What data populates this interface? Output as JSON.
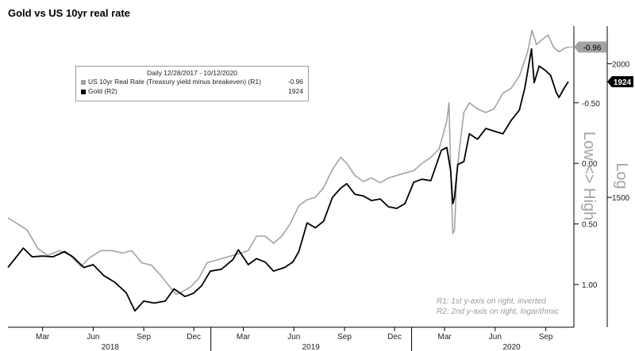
{
  "title": "Gold vs US 10yr real rate",
  "legend": {
    "header": "Daily 12/28/2017 - 10/12/2020",
    "items": [
      {
        "label": "US 10yr Real Rate (Treasury yield minus breakeven) (R1)",
        "value": "-0.96",
        "color": "#a3a3a3"
      },
      {
        "label": "Gold (R2)",
        "value": "1924",
        "color": "#000000"
      }
    ]
  },
  "notes": {
    "r1": "R1: 1st y-axis on right, inverted",
    "r2": "R2: 2nd y-axis on right, logarithmic"
  },
  "axis_titles": {
    "r1": "Low <> High",
    "r2": "Log"
  },
  "chart_data": {
    "type": "line",
    "title": "Gold vs US 10yr real rate",
    "date_range": [
      "2017-12-28",
      "2020-10-12"
    ],
    "x_tick_labels": [
      "Mar",
      "Jun",
      "Sep",
      "Dec",
      "Mar",
      "Jun",
      "Sep",
      "Dec",
      "Mar",
      "Jun",
      "Sep"
    ],
    "x_tick_dates": [
      "2018-03-01",
      "2018-06-01",
      "2018-09-01",
      "2018-12-01",
      "2019-03-01",
      "2019-06-01",
      "2019-09-01",
      "2019-12-01",
      "2020-03-01",
      "2020-06-01",
      "2020-09-01"
    ],
    "year_labels": [
      "2018",
      "2019",
      "2020"
    ],
    "year_dates": [
      "2018-07-02",
      "2019-07-02",
      "2020-07-01"
    ],
    "axis_r1": {
      "label": "Low <> High",
      "inverted": true,
      "range": [
        1.3,
        -1.1
      ],
      "ticks": [
        1.0,
        0.5,
        0.0,
        -0.5
      ],
      "tick_labels": [
        "1.00",
        "0.50",
        "0.00",
        "-0.50"
      ],
      "last_value_label": "-0.96"
    },
    "axis_r2": {
      "label": "Log",
      "scale": "log",
      "range": [
        1150,
        2150
      ],
      "ticks": [
        1500,
        2000
      ],
      "tick_labels": [
        "1500",
        "2000"
      ],
      "last_value_label": "1924"
    },
    "series": [
      {
        "name": "US 10yr Real Rate (Treasury yield minus breakeven) (R1)",
        "axis": "r1",
        "color": "#a3a3a3",
        "points": [
          [
            "2017-12-28",
            0.45
          ],
          [
            "2018-01-15",
            0.5
          ],
          [
            "2018-02-01",
            0.55
          ],
          [
            "2018-02-20",
            0.7
          ],
          [
            "2018-03-10",
            0.76
          ],
          [
            "2018-04-01",
            0.72
          ],
          [
            "2018-04-20",
            0.76
          ],
          [
            "2018-05-10",
            0.85
          ],
          [
            "2018-05-25",
            0.78
          ],
          [
            "2018-06-15",
            0.72
          ],
          [
            "2018-07-05",
            0.72
          ],
          [
            "2018-07-25",
            0.74
          ],
          [
            "2018-08-10",
            0.72
          ],
          [
            "2018-08-28",
            0.82
          ],
          [
            "2018-09-15",
            0.84
          ],
          [
            "2018-10-01",
            0.92
          ],
          [
            "2018-10-15",
            1.0
          ],
          [
            "2018-10-30",
            1.08
          ],
          [
            "2018-11-10",
            1.06
          ],
          [
            "2018-11-25",
            1.02
          ],
          [
            "2018-12-10",
            0.95
          ],
          [
            "2018-12-25",
            0.82
          ],
          [
            "2019-01-10",
            0.8
          ],
          [
            "2019-01-25",
            0.78
          ],
          [
            "2019-02-10",
            0.76
          ],
          [
            "2019-02-25",
            0.74
          ],
          [
            "2019-03-10",
            0.72
          ],
          [
            "2019-03-25",
            0.6
          ],
          [
            "2019-04-10",
            0.6
          ],
          [
            "2019-04-25",
            0.66
          ],
          [
            "2019-05-10",
            0.6
          ],
          [
            "2019-05-25",
            0.5
          ],
          [
            "2019-06-10",
            0.35
          ],
          [
            "2019-06-25",
            0.3
          ],
          [
            "2019-07-10",
            0.28
          ],
          [
            "2019-07-25",
            0.2
          ],
          [
            "2019-08-10",
            0.05
          ],
          [
            "2019-08-25",
            -0.05
          ],
          [
            "2019-09-05",
            0.0
          ],
          [
            "2019-09-20",
            0.1
          ],
          [
            "2019-10-05",
            0.15
          ],
          [
            "2019-10-20",
            0.12
          ],
          [
            "2019-11-05",
            0.16
          ],
          [
            "2019-11-20",
            0.12
          ],
          [
            "2019-12-05",
            0.1
          ],
          [
            "2019-12-20",
            0.08
          ],
          [
            "2020-01-05",
            0.06
          ],
          [
            "2020-01-20",
            0.0
          ],
          [
            "2020-02-05",
            -0.05
          ],
          [
            "2020-02-20",
            -0.12
          ],
          [
            "2020-03-05",
            -0.35
          ],
          [
            "2020-03-09",
            -0.5
          ],
          [
            "2020-03-12",
            0.05
          ],
          [
            "2020-03-16",
            0.58
          ],
          [
            "2020-03-19",
            0.55
          ],
          [
            "2020-03-23",
            0.1
          ],
          [
            "2020-03-28",
            -0.12
          ],
          [
            "2020-04-05",
            -0.42
          ],
          [
            "2020-04-15",
            -0.5
          ],
          [
            "2020-04-30",
            -0.45
          ],
          [
            "2020-05-15",
            -0.42
          ],
          [
            "2020-05-30",
            -0.45
          ],
          [
            "2020-06-15",
            -0.58
          ],
          [
            "2020-06-30",
            -0.62
          ],
          [
            "2020-07-15",
            -0.72
          ],
          [
            "2020-07-30",
            -0.92
          ],
          [
            "2020-08-07",
            -1.1
          ],
          [
            "2020-08-15",
            -0.98
          ],
          [
            "2020-08-25",
            -1.02
          ],
          [
            "2020-09-05",
            -1.06
          ],
          [
            "2020-09-15",
            -0.96
          ],
          [
            "2020-09-25",
            -0.92
          ],
          [
            "2020-10-05",
            -0.95
          ],
          [
            "2020-10-12",
            -0.96
          ]
        ]
      },
      {
        "name": "Gold (R2)",
        "axis": "r2",
        "color": "#000000",
        "points": [
          [
            "2017-12-28",
            1290
          ],
          [
            "2018-01-15",
            1325
          ],
          [
            "2018-01-25",
            1345
          ],
          [
            "2018-02-10",
            1320
          ],
          [
            "2018-03-01",
            1322
          ],
          [
            "2018-03-20",
            1320
          ],
          [
            "2018-04-10",
            1335
          ],
          [
            "2018-04-25",
            1320
          ],
          [
            "2018-05-15",
            1290
          ],
          [
            "2018-06-01",
            1298
          ],
          [
            "2018-06-20",
            1268
          ],
          [
            "2018-07-10",
            1250
          ],
          [
            "2018-07-31",
            1222
          ],
          [
            "2018-08-16",
            1175
          ],
          [
            "2018-09-01",
            1200
          ],
          [
            "2018-09-20",
            1195
          ],
          [
            "2018-10-10",
            1200
          ],
          [
            "2018-10-26",
            1232
          ],
          [
            "2018-11-15",
            1212
          ],
          [
            "2018-11-30",
            1220
          ],
          [
            "2018-12-15",
            1240
          ],
          [
            "2018-12-31",
            1280
          ],
          [
            "2019-01-20",
            1285
          ],
          [
            "2019-02-10",
            1312
          ],
          [
            "2019-02-20",
            1340
          ],
          [
            "2019-03-10",
            1298
          ],
          [
            "2019-03-25",
            1315
          ],
          [
            "2019-04-10",
            1305
          ],
          [
            "2019-04-25",
            1280
          ],
          [
            "2019-05-15",
            1290
          ],
          [
            "2019-05-30",
            1305
          ],
          [
            "2019-06-10",
            1335
          ],
          [
            "2019-06-25",
            1420
          ],
          [
            "2019-07-10",
            1405
          ],
          [
            "2019-07-25",
            1425
          ],
          [
            "2019-08-10",
            1500
          ],
          [
            "2019-08-25",
            1530
          ],
          [
            "2019-09-05",
            1545
          ],
          [
            "2019-09-20",
            1510
          ],
          [
            "2019-10-05",
            1505
          ],
          [
            "2019-10-20",
            1490
          ],
          [
            "2019-11-05",
            1495
          ],
          [
            "2019-11-20",
            1470
          ],
          [
            "2019-12-05",
            1465
          ],
          [
            "2019-12-20",
            1480
          ],
          [
            "2020-01-05",
            1550
          ],
          [
            "2020-01-20",
            1560
          ],
          [
            "2020-02-05",
            1555
          ],
          [
            "2020-02-24",
            1660
          ],
          [
            "2020-03-05",
            1670
          ],
          [
            "2020-03-12",
            1590
          ],
          [
            "2020-03-16",
            1480
          ],
          [
            "2020-03-19",
            1500
          ],
          [
            "2020-03-25",
            1610
          ],
          [
            "2020-04-05",
            1620
          ],
          [
            "2020-04-15",
            1720
          ],
          [
            "2020-04-30",
            1700
          ],
          [
            "2020-05-15",
            1740
          ],
          [
            "2020-05-30",
            1730
          ],
          [
            "2020-06-15",
            1720
          ],
          [
            "2020-06-30",
            1770
          ],
          [
            "2020-07-15",
            1810
          ],
          [
            "2020-07-25",
            1900
          ],
          [
            "2020-08-06",
            2065
          ],
          [
            "2020-08-11",
            1920
          ],
          [
            "2020-08-20",
            1990
          ],
          [
            "2020-09-01",
            1970
          ],
          [
            "2020-09-10",
            1950
          ],
          [
            "2020-09-20",
            1880
          ],
          [
            "2020-09-25",
            1860
          ],
          [
            "2020-10-05",
            1900
          ],
          [
            "2020-10-12",
            1924
          ]
        ]
      }
    ]
  }
}
